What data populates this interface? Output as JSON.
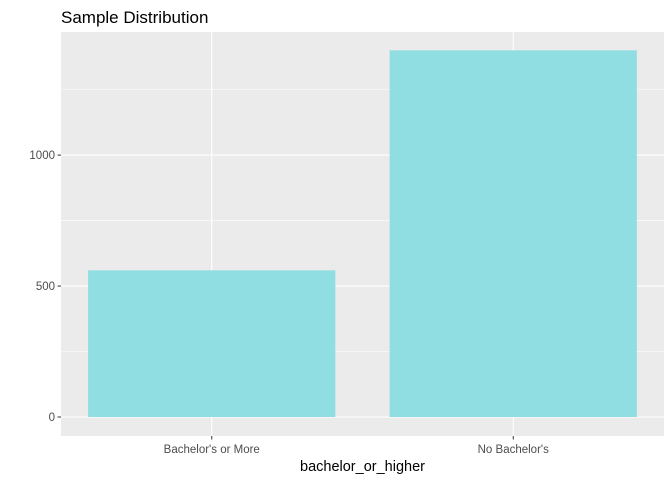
{
  "chart_data": {
    "type": "bar",
    "title": "Sample Distribution",
    "xlabel": "bachelor_or_higher",
    "ylabel": "",
    "categories": [
      "Bachelor's or More",
      "No Bachelor's"
    ],
    "values": [
      560,
      1400
    ],
    "ylim": [
      0,
      1470
    ],
    "yticks": [
      0,
      500,
      1000
    ],
    "ytick_labels": [
      "0",
      "500",
      "1000"
    ],
    "grid": true,
    "legend": "none",
    "colors": {
      "bar_fill": "#90dde2",
      "panel_background": "#ebebeb",
      "grid_major": "#ffffff",
      "tick_text": "#4d4d4d",
      "tick_mark": "#333333"
    }
  }
}
